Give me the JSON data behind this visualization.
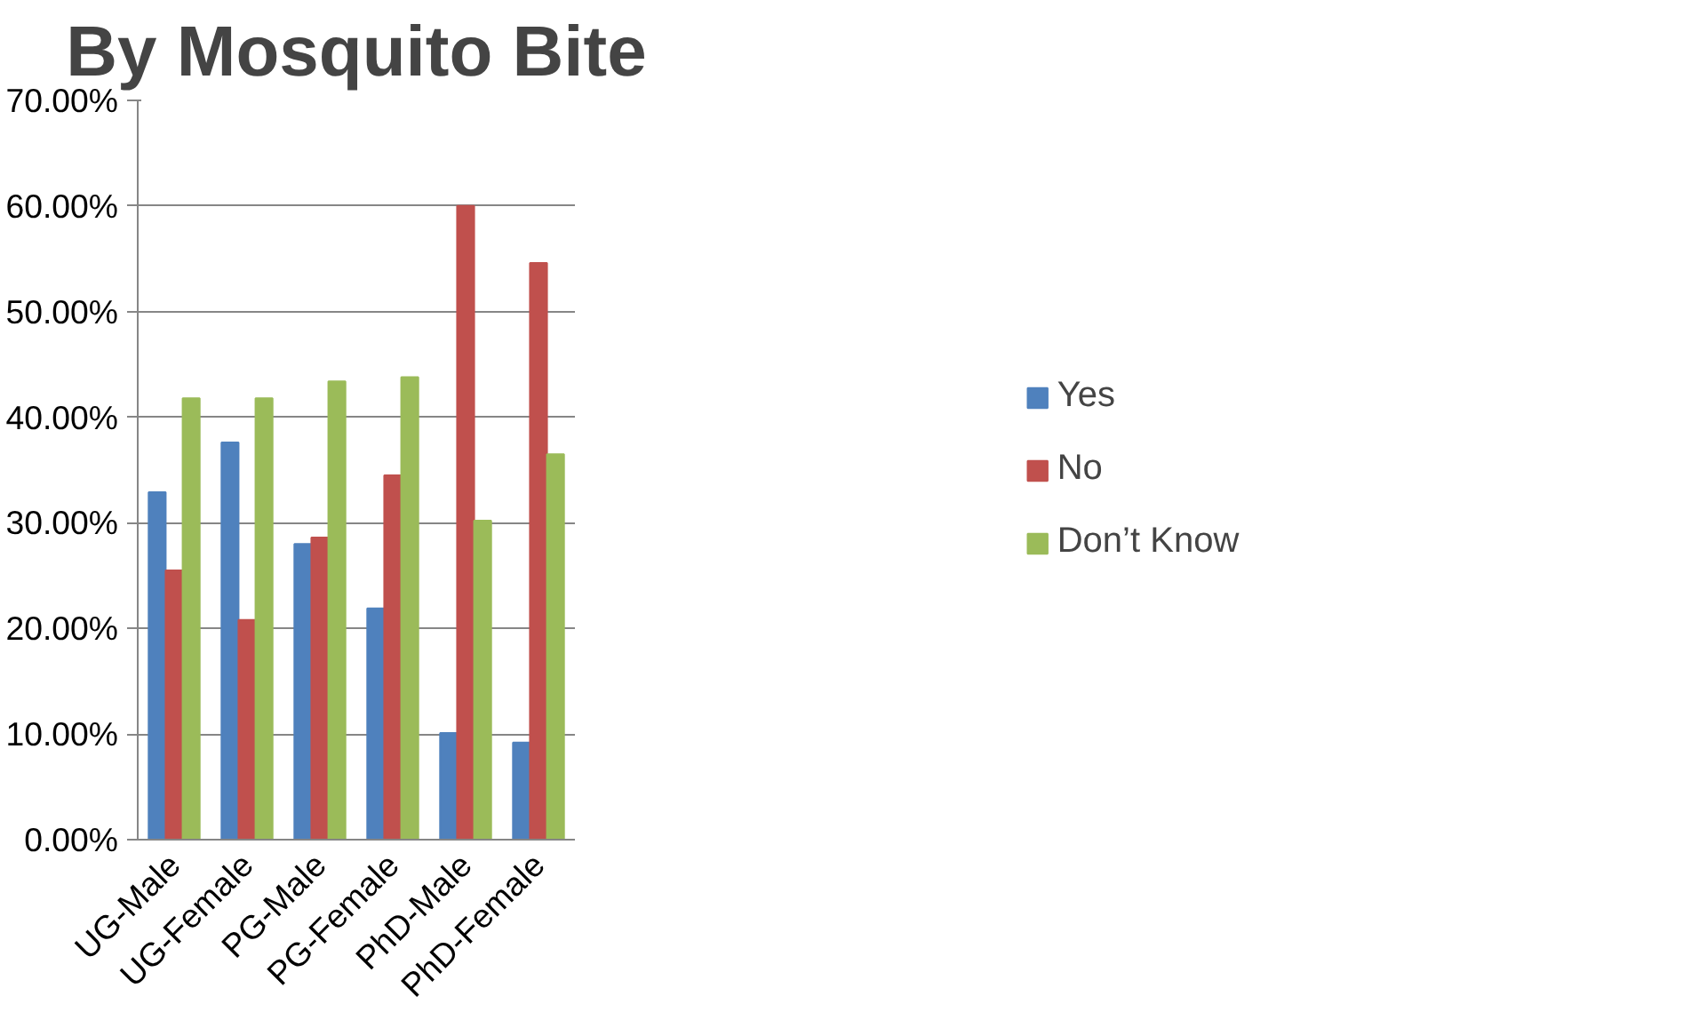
{
  "chart_data": {
    "type": "bar",
    "title": "By Mosquito Bite",
    "categories": [
      "UG-Male",
      "UG-Female",
      "PG-Male",
      "PG-Female",
      "PhD-Male",
      "PhD-Female"
    ],
    "series": [
      {
        "name": "Yes",
        "color": "#4f81bd",
        "values": [
          32.9,
          37.6,
          28.0,
          21.9,
          10.1,
          9.2
        ]
      },
      {
        "name": "No",
        "color": "#c0504d",
        "values": [
          25.5,
          20.8,
          28.6,
          34.5,
          60.0,
          54.6
        ]
      },
      {
        "name": "Don’t Know",
        "color": "#9bbb59",
        "values": [
          41.8,
          41.8,
          43.4,
          43.8,
          30.2,
          36.5
        ]
      }
    ],
    "ylim": [
      0,
      70
    ],
    "yticks": [
      {
        "value": 0,
        "label": "0.00%"
      },
      {
        "value": 10,
        "label": "10.00%"
      },
      {
        "value": 20,
        "label": "20.00%"
      },
      {
        "value": 30,
        "label": "30.00%"
      },
      {
        "value": 40,
        "label": "40.00%"
      },
      {
        "value": 50,
        "label": "50.00%"
      },
      {
        "value": 60,
        "label": "60.00%"
      },
      {
        "value": 70,
        "label": "70.00%"
      }
    ],
    "grid": "y",
    "legend": "right"
  }
}
